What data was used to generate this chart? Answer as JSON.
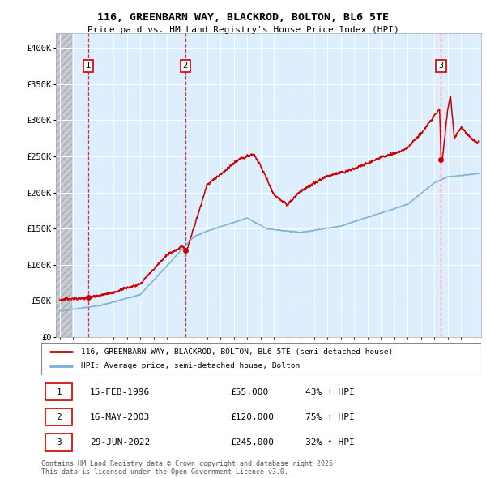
{
  "title": "116, GREENBARN WAY, BLACKROD, BOLTON, BL6 5TE",
  "subtitle": "Price paid vs. HM Land Registry's House Price Index (HPI)",
  "sale_prices": [
    55000,
    120000,
    245000
  ],
  "sale_labels": [
    "1",
    "2",
    "3"
  ],
  "sale_hpi_pct": [
    "43% ↑ HPI",
    "75% ↑ HPI",
    "32% ↑ HPI"
  ],
  "sale_date_labels": [
    "15-FEB-1996",
    "16-MAY-2003",
    "29-JUN-2022"
  ],
  "legend_line1": "116, GREENBARN WAY, BLACKROD, BOLTON, BL6 5TE (semi-detached house)",
  "legend_line2": "HPI: Average price, semi-detached house, Bolton",
  "footer": "Contains HM Land Registry data © Crown copyright and database right 2025.\nThis data is licensed under the Open Government Licence v3.0.",
  "red_color": "#cc0000",
  "blue_color": "#7aaed6",
  "background_plot": "#ddeeff",
  "ylim": [
    0,
    420000
  ],
  "xlim_start": 1993.7,
  "xlim_end": 2025.5,
  "yticks": [
    0,
    50000,
    100000,
    150000,
    200000,
    250000,
    300000,
    350000,
    400000
  ],
  "ytick_labels": [
    "£0",
    "£50K",
    "£100K",
    "£150K",
    "£200K",
    "£250K",
    "£300K",
    "£350K",
    "£400K"
  ],
  "sale_years": [
    1996.12,
    2003.37,
    2022.5
  ]
}
